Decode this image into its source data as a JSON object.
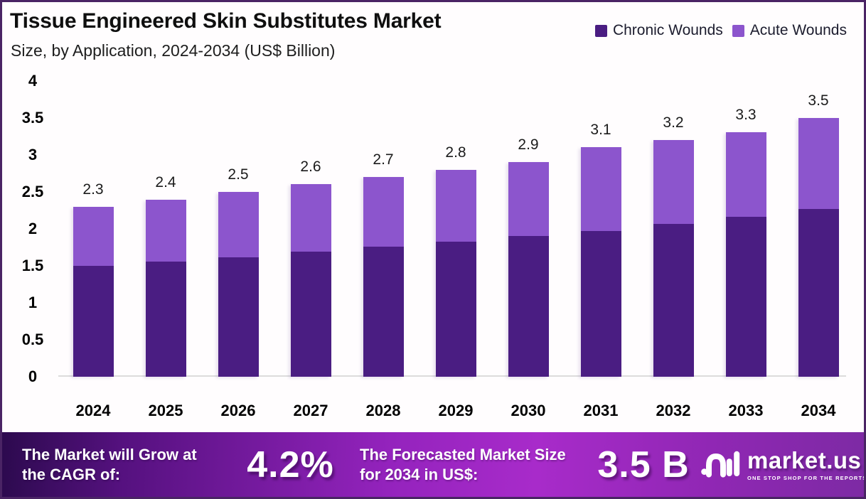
{
  "header": {
    "title": "Tissue Engineered Skin Substitutes Market",
    "subtitle": "Size, by Application, 2024-2034 (US$ Billion)"
  },
  "legend": [
    {
      "label": "Chronic Wounds",
      "color": "#4A1D82"
    },
    {
      "label": "Acute Wounds",
      "color": "#8C55CD"
    }
  ],
  "chart_data": {
    "type": "bar",
    "stacked": true,
    "title": "Tissue Engineered Skin Substitutes Market Size, by Application, 2024-2034 (US$ Billion)",
    "xlabel": "",
    "ylabel": "US$ Billion",
    "ylim": [
      0,
      4
    ],
    "yticks": [
      0,
      0.5,
      1,
      1.5,
      2,
      2.5,
      3,
      3.5,
      4
    ],
    "grid": false,
    "legend_position": "top-right",
    "categories": [
      "2024",
      "2025",
      "2026",
      "2027",
      "2028",
      "2029",
      "2030",
      "2031",
      "2032",
      "2033",
      "2034"
    ],
    "series": [
      {
        "name": "Chronic Wounds",
        "color": "#4A1D82",
        "values": [
          1.5,
          1.56,
          1.62,
          1.69,
          1.76,
          1.83,
          1.9,
          1.97,
          2.07,
          2.16,
          2.27
        ]
      },
      {
        "name": "Acute Wounds",
        "color": "#8C55CD",
        "values": [
          0.8,
          0.84,
          0.88,
          0.91,
          0.94,
          0.97,
          1.0,
          1.13,
          1.13,
          1.14,
          1.23
        ]
      }
    ],
    "totals": [
      2.3,
      2.4,
      2.5,
      2.6,
      2.7,
      2.8,
      2.9,
      3.1,
      3.2,
      3.3,
      3.5
    ],
    "total_labels": [
      "2.3",
      "2.4",
      "2.5",
      "2.6",
      "2.7",
      "2.8",
      "2.9",
      "3.1",
      "3.2",
      "3.3",
      "3.5"
    ]
  },
  "footer": {
    "cagr_label": "The Market will Grow at the CAGR of:",
    "cagr_value": "4.2%",
    "forecast_label": "The Forecasted Market Size for 2034 in US$:",
    "forecast_value": "3.5 B",
    "brand": {
      "name": "market.us",
      "tagline": "ONE STOP SHOP FOR THE REPORTS"
    }
  },
  "colors": {
    "chronic": "#4A1D82",
    "acute": "#8C55CD",
    "border": "#4A2465",
    "banner_gradient_left": "#2C0A4E",
    "banner_gradient_mid": "#A82BCA",
    "banner_gradient_right": "#7D2AA4",
    "baseline": "#DCDCDC",
    "text": "#000000",
    "banner_text": "#FFFFFF"
  }
}
